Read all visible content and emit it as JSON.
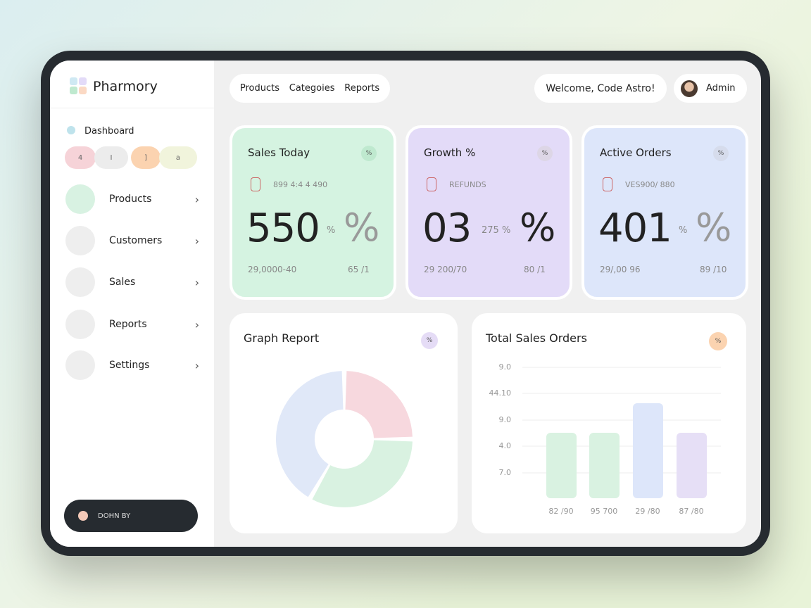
{
  "sidebar": {
    "brand": "Pharmory",
    "dashboard": "Dashboard",
    "pills": [
      "4",
      "I",
      "]",
      "a"
    ],
    "menu": [
      "Products",
      "Customers",
      "Sales",
      "Reports",
      "Settings"
    ],
    "footer_button": "DOHN BY"
  },
  "topbar": {
    "nav": [
      "Products",
      "Categoies",
      "Reports"
    ],
    "welcome": "Welcome, Code Astro!",
    "user": "Admin"
  },
  "cards": [
    {
      "title": "Sales Today",
      "badge": "%",
      "subtitle": "899 4:4 4 490",
      "value": "550",
      "unit": "%",
      "symbol": "%",
      "footer_left": "29,0000-40",
      "footer_right": "65 /1"
    },
    {
      "title": "Growth %",
      "badge": "%",
      "subtitle": "REFUNDS",
      "value": "03",
      "unit": "275 %",
      "symbol": "%",
      "footer_left": "29 200/70",
      "footer_right": "80 /1"
    },
    {
      "title": "Active Orders",
      "badge": "%",
      "subtitle": "VES900/ 880",
      "value": "401",
      "unit": "%",
      "symbol": "%",
      "footer_left": "29/,00 96",
      "footer_right": "89 /10"
    }
  ],
  "graph_report": {
    "title": "Graph Report",
    "badge": "%"
  },
  "total_sales_orders": {
    "title": "Total Sales Orders",
    "badge": "%",
    "y_labels": [
      "9.0",
      "44.10",
      "9.0",
      "4.0",
      "7.0"
    ],
    "x_labels": [
      "82 /90",
      "95 700",
      "29 /80",
      "87 /80"
    ]
  }
}
